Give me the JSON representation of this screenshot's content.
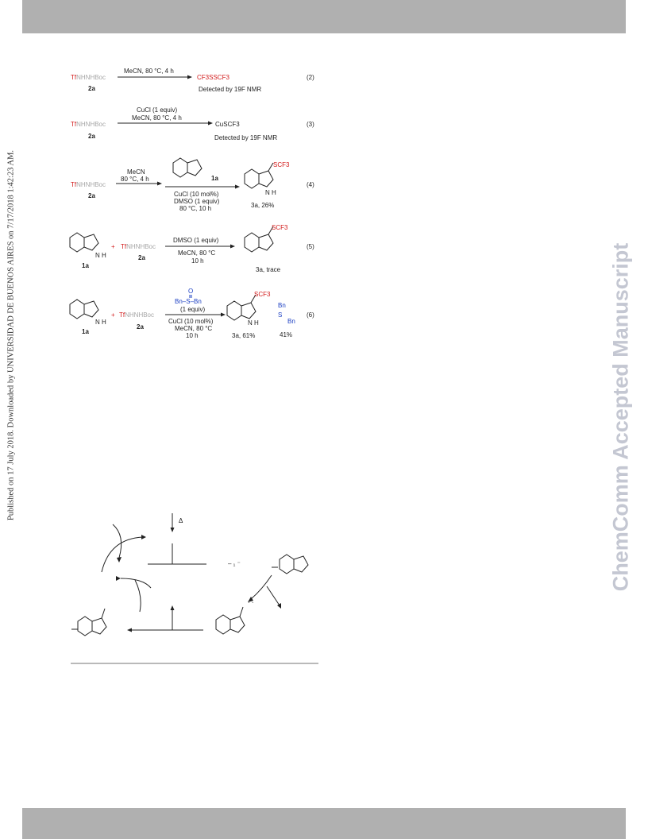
{
  "margin_text": "Published on 17 July 2018. Downloaded by UNIVERSIDAD DE BUENOS AIRES on 7/17/2018 1:42:23 AM.",
  "watermark": "ChemComm Accepted Manuscript",
  "reagents": {
    "tf": "Tf",
    "nhnhboc": "NHNHBoc",
    "label_2a": "2a",
    "label_1a": "1a",
    "label_3a": "3a"
  },
  "eq2": {
    "conditions": "MeCN, 80 °C, 4 h",
    "product": "CF3SSCF3",
    "note": "Detected by 19F NMR",
    "number": "(2)"
  },
  "eq3": {
    "conditions_top": "CuCl (1 equiv)",
    "conditions_bottom": "MeCN, 80 °C, 4 h",
    "product": "CuSCF3",
    "note": "Detected by 19F NMR",
    "number": "(3)"
  },
  "eq4": {
    "cond_left_1": "MeCN",
    "cond_left_2": "80 °C, 4 h",
    "cond_below_1": "CuCl (10 mol%)",
    "cond_below_2": "DMSO (1 equiv)",
    "cond_below_3": "80 °C, 10 h",
    "substituent": "SCF3",
    "nh": "N H",
    "yield": "3a, 26%",
    "number": "(4)"
  },
  "eq5": {
    "plus": "+",
    "cond_top": "DMSO (1 equiv)",
    "cond_bottom_1": "MeCN, 80 °C",
    "cond_bottom_2": "10 h",
    "substituent": "SCF3",
    "yield": "3a, trace",
    "number": "(5)"
  },
  "eq6": {
    "plus": "+",
    "sulfoxide": "Bn–S–Bn",
    "sulfoxide_o": "O",
    "sulfoxide_equiv": "(1 equiv)",
    "cond_1": "CuCl (10 mol%)",
    "cond_2": "MeCN, 80 °C",
    "cond_3": "10 h",
    "substituent": "SCF3",
    "yield": "3a, 61%",
    "byproduct_bn": "Bn",
    "byproduct_s": "S",
    "byproduct_yield": "41%",
    "number": "(6)"
  },
  "cycle": {
    "heat": "Δ",
    "fragment": "– ₁ ⁻",
    "ticks": "` `"
  }
}
